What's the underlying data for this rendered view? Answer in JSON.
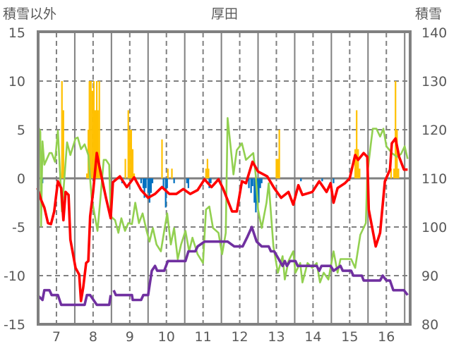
{
  "chart_data": {
    "type": "line",
    "title": "厚田",
    "ylabel_left": "積雪以外",
    "ylabel_right": "積雪",
    "xlim": [
      6.5,
      16.65
    ],
    "ylim_left": [
      -15,
      15
    ],
    "ylim_right": [
      80,
      140
    ],
    "x_ticks": [
      7,
      8,
      9,
      10,
      11,
      12,
      13,
      14,
      15,
      16
    ],
    "x_tick_labels": [
      "7",
      "8",
      "9",
      "10",
      "11",
      "12",
      "13",
      "14",
      "15",
      "16"
    ],
    "y_ticks_left": [
      15,
      10,
      5,
      0,
      -5,
      -10,
      -15
    ],
    "y_tick_labels_left": [
      "15",
      "10",
      "5",
      "0",
      "-5",
      "-10",
      "-15"
    ],
    "y_ticks_right": [
      140,
      130,
      120,
      110,
      100,
      90,
      80
    ],
    "y_tick_labels_right": [
      "140",
      "130",
      "120",
      "110",
      "100",
      "90",
      "80"
    ],
    "grid": true,
    "colors": {
      "red": "#FF0000",
      "green": "#92D050",
      "purple": "#7030A0",
      "orange": "#FFC000",
      "blue": "#0070C0",
      "frame": "#808080",
      "text": "#595959"
    },
    "bars_orange": [
      [
        7.15,
        10
      ],
      [
        7.19,
        7
      ],
      [
        7.83,
        0.5
      ],
      [
        7.87,
        5
      ],
      [
        7.9,
        10
      ],
      [
        7.94,
        10
      ],
      [
        7.98,
        9
      ],
      [
        8.02,
        10
      ],
      [
        8.06,
        7
      ],
      [
        8.1,
        10
      ],
      [
        8.13,
        7
      ],
      [
        8.17,
        10
      ],
      [
        8.21,
        0.5
      ],
      [
        8.88,
        2
      ],
      [
        8.96,
        7
      ],
      [
        9.0,
        5
      ],
      [
        9.04,
        5
      ],
      [
        9.08,
        3
      ],
      [
        9.12,
        0.5
      ],
      [
        9.88,
        4
      ],
      [
        10.04,
        1
      ],
      [
        10.15,
        1
      ],
      [
        11.08,
        1
      ],
      [
        11.12,
        2
      ],
      [
        11.15,
        1
      ],
      [
        13.0,
        2
      ],
      [
        13.04,
        2
      ],
      [
        13.08,
        5
      ],
      [
        15.15,
        3
      ],
      [
        15.19,
        7
      ],
      [
        15.23,
        3
      ],
      [
        15.27,
        1
      ],
      [
        16.13,
        1
      ],
      [
        16.21,
        1
      ],
      [
        16.25,
        10
      ],
      [
        16.29,
        5
      ],
      [
        16.33,
        1
      ]
    ],
    "bars_blue": [
      [
        6.62,
        -0.5
      ],
      [
        8.79,
        -0.5
      ],
      [
        9.31,
        -0.5
      ],
      [
        9.37,
        -1
      ],
      [
        9.4,
        -2
      ],
      [
        9.44,
        -1
      ],
      [
        9.5,
        -1.5
      ],
      [
        9.54,
        -2.5
      ],
      [
        9.58,
        -1.5
      ],
      [
        9.62,
        -0.5
      ],
      [
        9.92,
        -1
      ],
      [
        9.98,
        -3
      ],
      [
        10.02,
        -1
      ],
      [
        10.21,
        -0.5
      ],
      [
        10.56,
        -0.5
      ],
      [
        10.6,
        -1
      ],
      [
        11.17,
        -1
      ],
      [
        11.21,
        -0.5
      ],
      [
        12.19,
        -0.5
      ],
      [
        12.25,
        -1
      ],
      [
        12.31,
        -1.5
      ],
      [
        12.35,
        -0.8
      ],
      [
        12.4,
        -2.5
      ],
      [
        12.44,
        -3.5
      ],
      [
        12.48,
        -2
      ],
      [
        12.52,
        -2.5
      ],
      [
        12.56,
        -1
      ],
      [
        12.6,
        -0.5
      ],
      [
        13.67,
        -0.3
      ],
      [
        14.25,
        -0.3
      ],
      [
        14.56,
        -0.5
      ]
    ],
    "series": [
      {
        "name": "green",
        "axis": "left",
        "points": [
          [
            6.48,
            5.5
          ],
          [
            6.56,
            4.8
          ],
          [
            6.58,
            -4.9
          ],
          [
            6.62,
            3.8
          ],
          [
            6.67,
            1.4
          ],
          [
            6.81,
            2.6
          ],
          [
            6.87,
            2.6
          ],
          [
            6.96,
            1.7
          ],
          [
            7.04,
            4.9
          ],
          [
            7.1,
            0.4
          ],
          [
            7.15,
            -3.4
          ],
          [
            7.29,
            3.7
          ],
          [
            7.38,
            2.4
          ],
          [
            7.52,
            4.1
          ],
          [
            7.58,
            4.2
          ],
          [
            7.67,
            3.0
          ],
          [
            7.77,
            3.5
          ],
          [
            7.87,
            2.4
          ],
          [
            7.96,
            -2.0
          ],
          [
            8.12,
            -5.4
          ],
          [
            8.19,
            -2.5
          ],
          [
            8.29,
            1.9
          ],
          [
            8.35,
            1.9
          ],
          [
            8.44,
            1.4
          ],
          [
            8.48,
            -3.9
          ],
          [
            8.6,
            -4.3
          ],
          [
            8.69,
            -5.6
          ],
          [
            8.77,
            -4.1
          ],
          [
            8.87,
            -5.4
          ],
          [
            8.96,
            -4.6
          ],
          [
            9.06,
            -4.7
          ],
          [
            9.15,
            -2.5
          ],
          [
            9.25,
            -4.6
          ],
          [
            9.35,
            -3.6
          ],
          [
            9.46,
            -5.4
          ],
          [
            9.54,
            -6.5
          ],
          [
            9.63,
            -5.1
          ],
          [
            9.73,
            -6.8
          ],
          [
            9.85,
            -7.5
          ],
          [
            9.94,
            -5.4
          ],
          [
            10.02,
            -3.6
          ],
          [
            10.12,
            -6.8
          ],
          [
            10.21,
            -5.1
          ],
          [
            10.31,
            -8.3
          ],
          [
            10.4,
            -6.8
          ],
          [
            10.52,
            -5.4
          ],
          [
            10.62,
            -7.5
          ],
          [
            10.71,
            -6.1
          ],
          [
            10.85,
            -7.8
          ],
          [
            11.0,
            -8.7
          ],
          [
            11.08,
            -3.2
          ],
          [
            11.17,
            -2.9
          ],
          [
            11.27,
            -5.1
          ],
          [
            11.42,
            -5.6
          ],
          [
            11.52,
            -7.8
          ],
          [
            11.62,
            -5.6
          ],
          [
            11.67,
            6.2
          ],
          [
            11.77,
            2.6
          ],
          [
            11.83,
            0.4
          ],
          [
            11.92,
            2.9
          ],
          [
            12.06,
            3.6
          ],
          [
            12.17,
            1.9
          ],
          [
            12.37,
            2.6
          ],
          [
            12.44,
            0.2
          ],
          [
            12.5,
            -3.2
          ],
          [
            12.6,
            -5.1
          ],
          [
            12.73,
            -2.5
          ],
          [
            12.79,
            -0.5
          ],
          [
            12.92,
            -7.0
          ],
          [
            13.04,
            -9.7
          ],
          [
            13.17,
            -8.0
          ],
          [
            13.23,
            -10.4
          ],
          [
            13.33,
            -8.5
          ],
          [
            13.46,
            -7.5
          ],
          [
            13.52,
            -9.7
          ],
          [
            13.65,
            -8.7
          ],
          [
            13.71,
            -10.7
          ],
          [
            13.85,
            -8.7
          ],
          [
            13.98,
            -9.2
          ],
          [
            14.1,
            -8.7
          ],
          [
            14.19,
            -10.7
          ],
          [
            14.29,
            -9.7
          ],
          [
            14.42,
            -10.4
          ],
          [
            14.56,
            -7.5
          ],
          [
            14.67,
            -9.7
          ],
          [
            14.75,
            -8.3
          ],
          [
            14.87,
            -8.3
          ],
          [
            15.04,
            -8.3
          ],
          [
            15.15,
            -9.2
          ],
          [
            15.29,
            -5.8
          ],
          [
            15.44,
            -4.6
          ],
          [
            15.48,
            0.4
          ],
          [
            15.58,
            3.6
          ],
          [
            15.63,
            5.1
          ],
          [
            15.73,
            5.1
          ],
          [
            15.83,
            4.3
          ],
          [
            15.92,
            5.1
          ],
          [
            16.0,
            3.3
          ],
          [
            16.15,
            2.6
          ],
          [
            16.29,
            2.2
          ],
          [
            16.4,
            2.5
          ],
          [
            16.5,
            3.3
          ],
          [
            16.58,
            2.0
          ]
        ]
      },
      {
        "name": "red",
        "axis": "left",
        "points": [
          [
            6.48,
            -1.0
          ],
          [
            6.58,
            -2.2
          ],
          [
            6.67,
            -3.0
          ],
          [
            6.77,
            -4.6
          ],
          [
            6.85,
            -4.7
          ],
          [
            6.94,
            -3.4
          ],
          [
            7.04,
            -0.3
          ],
          [
            7.13,
            -1.0
          ],
          [
            7.19,
            -4.3
          ],
          [
            7.25,
            -1.4
          ],
          [
            7.33,
            -1.7
          ],
          [
            7.38,
            -6.3
          ],
          [
            7.52,
            -9.2
          ],
          [
            7.62,
            -9.9
          ],
          [
            7.67,
            -12.6
          ],
          [
            7.73,
            -11.2
          ],
          [
            7.81,
            -8.7
          ],
          [
            7.87,
            -8.5
          ],
          [
            7.92,
            -3.9
          ],
          [
            8.0,
            -1.4
          ],
          [
            8.1,
            2.6
          ],
          [
            8.19,
            0.9
          ],
          [
            8.35,
            -2.0
          ],
          [
            8.48,
            -4.1
          ],
          [
            8.54,
            -0.4
          ],
          [
            8.73,
            0.2
          ],
          [
            8.92,
            -0.9
          ],
          [
            9.12,
            0.1
          ],
          [
            9.31,
            -1.2
          ],
          [
            9.5,
            -2.0
          ],
          [
            9.69,
            -1.6
          ],
          [
            9.88,
            -0.9
          ],
          [
            10.08,
            -1.6
          ],
          [
            10.27,
            -1.6
          ],
          [
            10.46,
            -1.1
          ],
          [
            10.65,
            -1.6
          ],
          [
            10.85,
            -1.2
          ],
          [
            11.04,
            -0.1
          ],
          [
            11.23,
            -0.9
          ],
          [
            11.42,
            -0.1
          ],
          [
            11.54,
            -1.0
          ],
          [
            11.79,
            -3.4
          ],
          [
            11.92,
            -3.4
          ],
          [
            12.06,
            -0.3
          ],
          [
            12.17,
            -0.5
          ],
          [
            12.35,
            1.7
          ],
          [
            12.5,
            0.7
          ],
          [
            12.75,
            0.2
          ],
          [
            12.94,
            -1.0
          ],
          [
            13.13,
            -2.0
          ],
          [
            13.33,
            -1.4
          ],
          [
            13.46,
            -2.7
          ],
          [
            13.6,
            -0.7
          ],
          [
            13.71,
            -1.7
          ],
          [
            13.98,
            -1.4
          ],
          [
            14.17,
            -0.3
          ],
          [
            14.37,
            -1.4
          ],
          [
            14.48,
            -0.5
          ],
          [
            14.56,
            -2.5
          ],
          [
            14.67,
            -1.0
          ],
          [
            14.87,
            -0.5
          ],
          [
            15.0,
            0.0
          ],
          [
            15.15,
            2.4
          ],
          [
            15.23,
            1.9
          ],
          [
            15.38,
            2.6
          ],
          [
            15.48,
            2.2
          ],
          [
            15.52,
            -3.2
          ],
          [
            15.71,
            -7.0
          ],
          [
            15.83,
            -5.6
          ],
          [
            15.96,
            -0.3
          ],
          [
            16.1,
            0.9
          ],
          [
            16.15,
            3.6
          ],
          [
            16.25,
            4.1
          ],
          [
            16.35,
            2.2
          ],
          [
            16.48,
            0.9
          ],
          [
            16.58,
            0.9
          ]
        ]
      },
      {
        "name": "purple",
        "axis": "right",
        "points": [
          [
            6.48,
            86
          ],
          [
            6.62,
            85
          ],
          [
            6.67,
            87
          ],
          [
            6.81,
            87
          ],
          [
            6.87,
            86
          ],
          [
            7.04,
            86
          ],
          [
            7.13,
            84
          ],
          [
            7.77,
            84
          ],
          [
            7.83,
            86
          ],
          [
            7.92,
            86
          ],
          [
            8.1,
            84
          ],
          [
            8.44,
            84
          ],
          [
            8.48,
            86
          ],
          null,
          [
            8.56,
            87
          ],
          [
            8.62,
            86
          ],
          [
            9.06,
            86
          ],
          [
            9.08,
            85
          ],
          [
            9.31,
            85
          ],
          [
            9.37,
            86
          ],
          [
            9.5,
            86
          ],
          [
            9.6,
            91
          ],
          [
            9.69,
            92
          ],
          [
            9.75,
            91
          ],
          [
            9.94,
            91
          ],
          [
            10.04,
            93
          ],
          [
            10.52,
            93
          ],
          [
            10.6,
            95
          ],
          [
            10.79,
            95
          ],
          [
            10.85,
            96
          ],
          [
            11.04,
            97
          ],
          [
            11.62,
            97
          ],
          [
            11.67,
            97
          ],
          [
            11.85,
            96
          ],
          [
            12.08,
            96
          ],
          [
            12.21,
            98
          ],
          [
            12.33,
            100
          ],
          [
            12.46,
            97
          ],
          [
            12.6,
            96
          ],
          [
            12.79,
            96
          ],
          [
            12.85,
            95
          ],
          [
            12.94,
            95
          ],
          [
            13.17,
            92
          ],
          [
            13.23,
            93
          ],
          [
            13.29,
            92
          ],
          [
            13.37,
            93
          ],
          [
            13.52,
            93
          ],
          [
            13.58,
            92
          ],
          [
            14.1,
            92
          ],
          [
            14.17,
            91
          ],
          [
            14.23,
            92
          ],
          [
            14.48,
            92
          ],
          [
            14.56,
            91
          ],
          [
            14.75,
            92
          ],
          [
            14.81,
            91
          ],
          [
            15.04,
            91
          ],
          [
            15.1,
            90
          ],
          [
            15.33,
            90
          ],
          [
            15.38,
            89
          ],
          [
            15.83,
            89
          ],
          [
            15.9,
            90
          ],
          [
            16.0,
            89
          ],
          [
            16.1,
            89
          ],
          [
            16.19,
            87
          ],
          [
            16.48,
            87
          ],
          [
            16.58,
            86
          ]
        ]
      }
    ]
  }
}
